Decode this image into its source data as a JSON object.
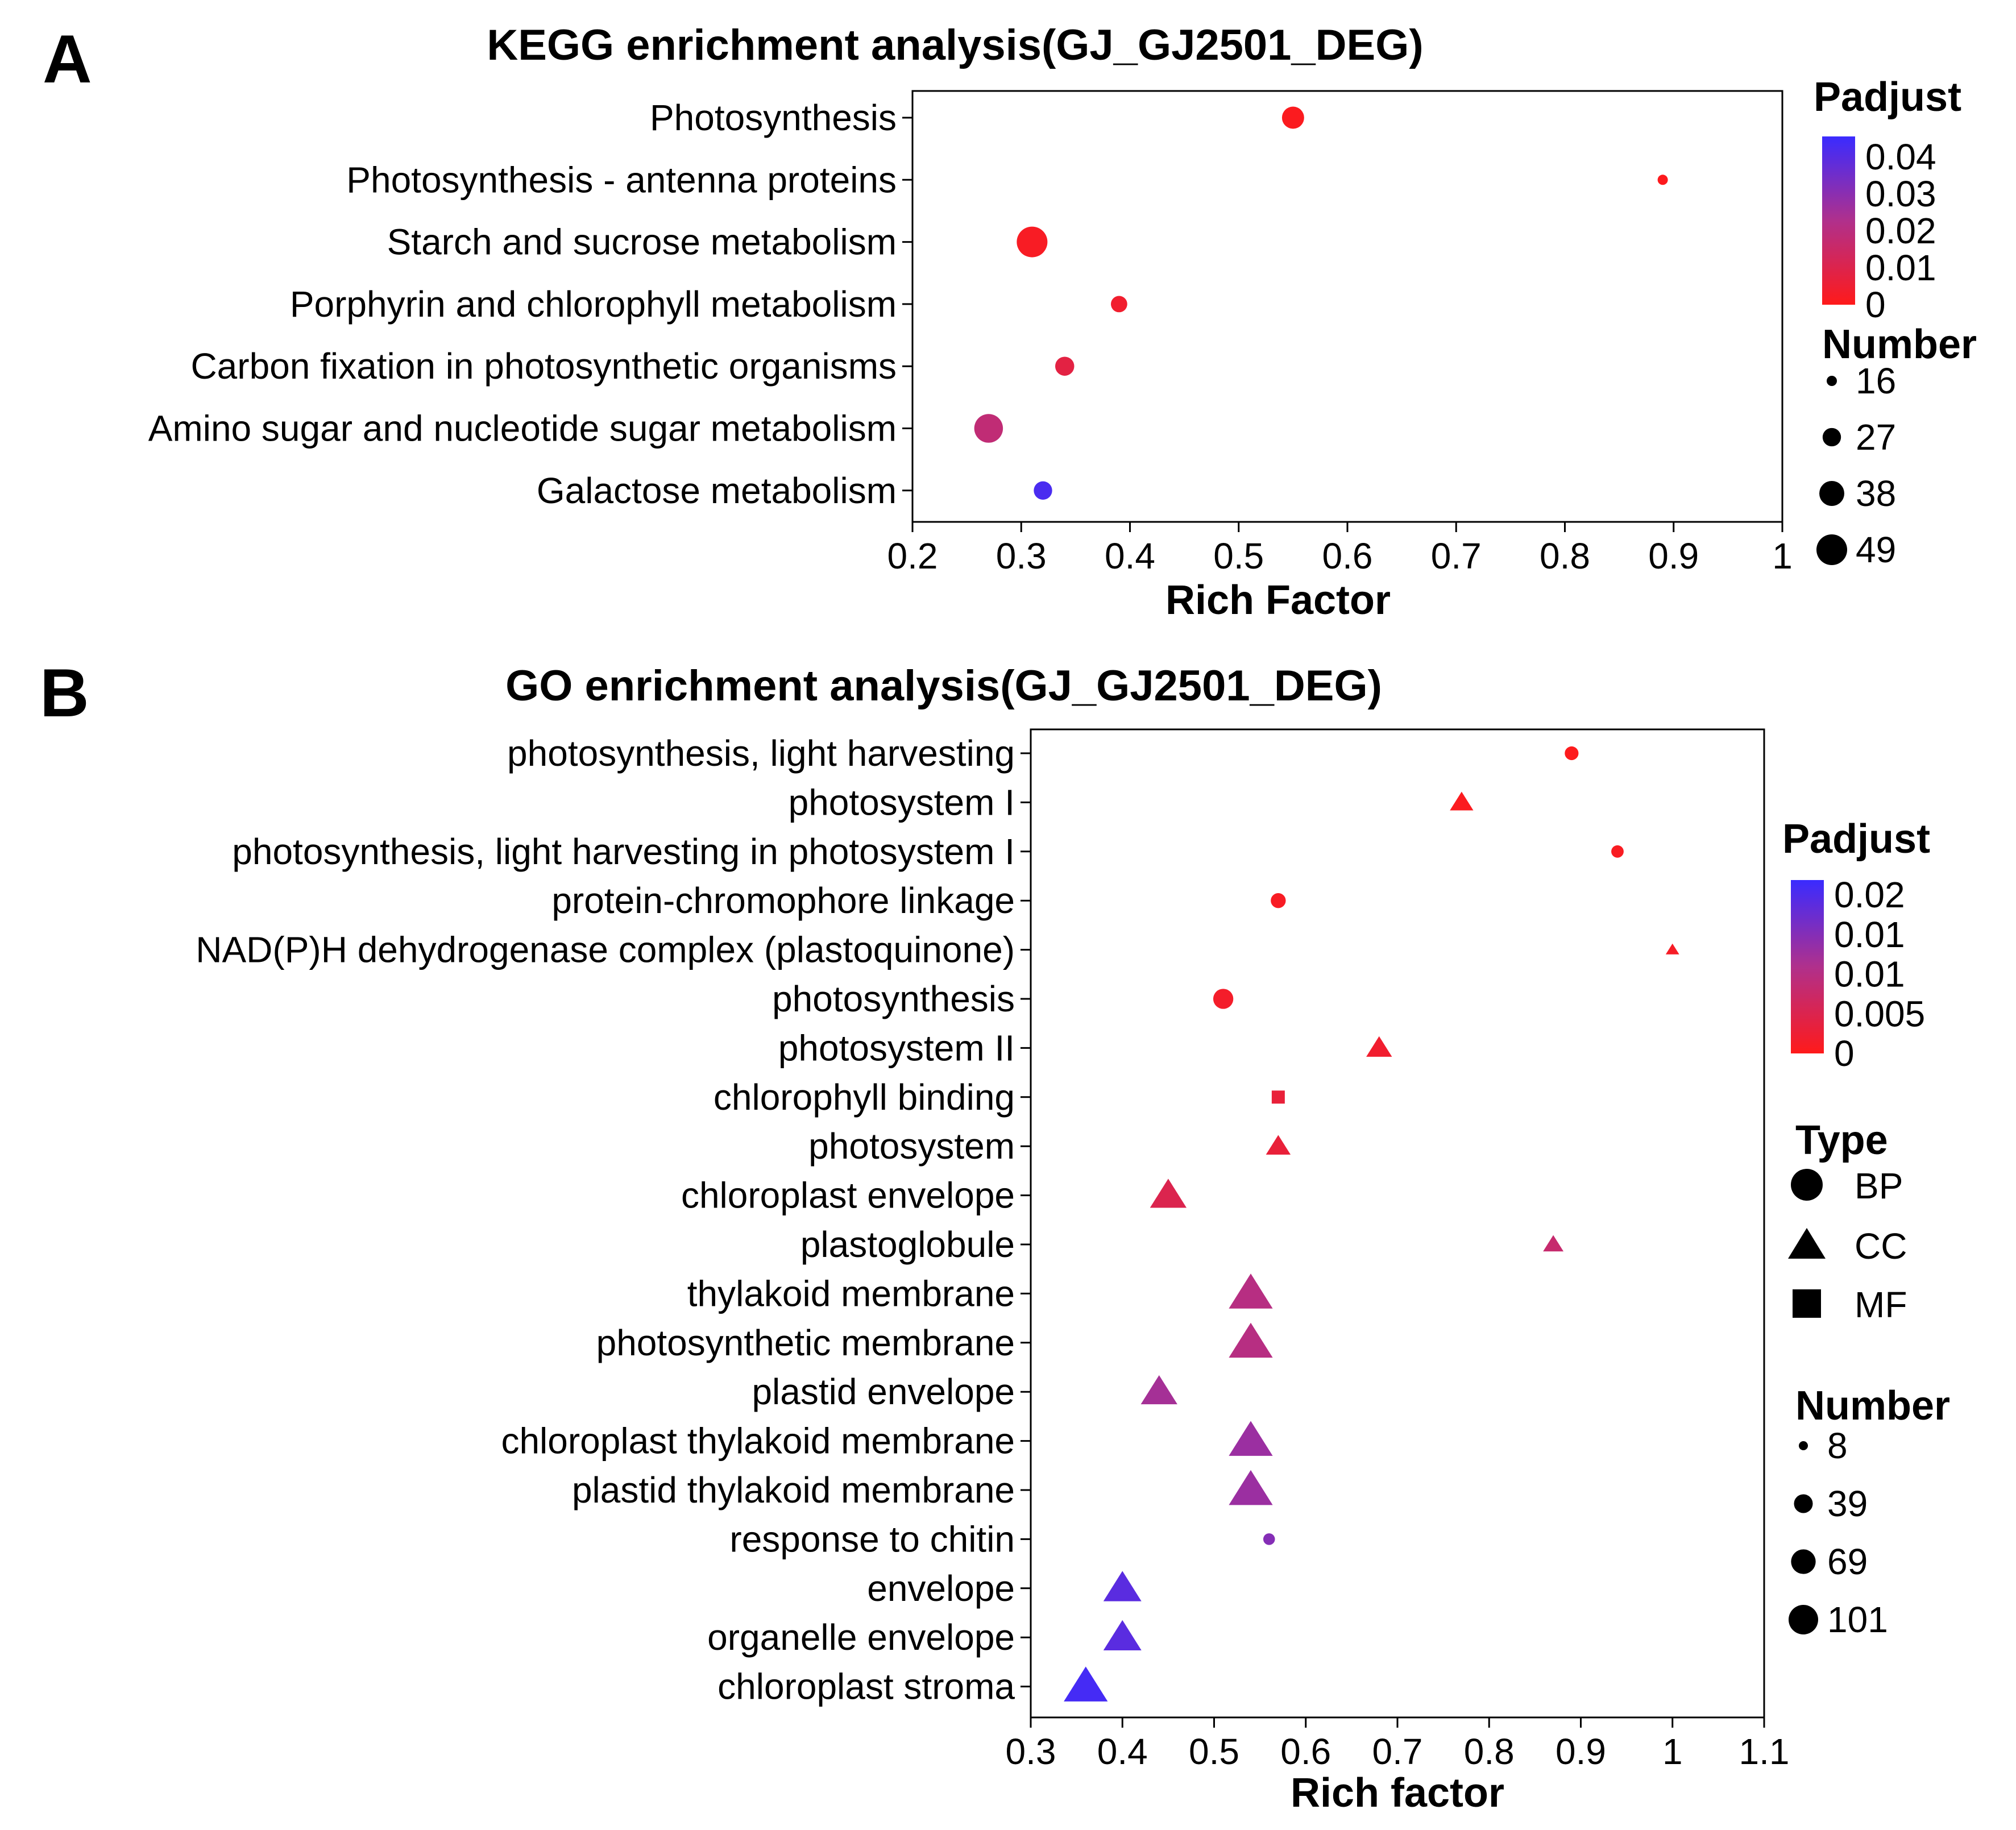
{
  "chart_data": [
    {
      "panel": "A",
      "type": "scatter",
      "title": "KEGG enrichment analysis(GJ_GJ2501_DEG)",
      "xlabel": "Rich Factor",
      "xlim": [
        0.2,
        1
      ],
      "xticks": [
        "0.2",
        "0.3",
        "0.4",
        "0.5",
        "0.6",
        "0.7",
        "0.8",
        "0.9",
        "1"
      ],
      "xtick_values": [
        0.2,
        0.3,
        0.4,
        0.5,
        0.6,
        0.7,
        0.8,
        0.9,
        1.0
      ],
      "categories": [
        "Photosynthesis",
        "Photosynthesis - antenna proteins",
        "Starch and sucrose metabolism",
        "Porphyrin and chlorophyll metabolism",
        "Carbon fixation in photosynthetic organisms",
        "Amino sugar and nucleotide sugar metabolism",
        "Galactose metabolism"
      ],
      "points": [
        {
          "category": "Photosynthesis",
          "rich_factor": 0.55,
          "number": 33,
          "padjust": 0.001
        },
        {
          "category": "Photosynthesis - antenna proteins",
          "rich_factor": 0.89,
          "number": 16,
          "padjust": 0.0005
        },
        {
          "category": "Starch and sucrose metabolism",
          "rich_factor": 0.31,
          "number": 49,
          "padjust": 0.002
        },
        {
          "category": "Porphyrin and chlorophyll metabolism",
          "rich_factor": 0.39,
          "number": 24,
          "padjust": 0.004
        },
        {
          "category": "Carbon fixation in photosynthetic organisms",
          "rich_factor": 0.34,
          "number": 28,
          "padjust": 0.008
        },
        {
          "category": "Amino sugar and nucleotide sugar metabolism",
          "rich_factor": 0.27,
          "number": 45,
          "padjust": 0.018
        },
        {
          "category": "Galactose metabolism",
          "rich_factor": 0.32,
          "number": 27,
          "padjust": 0.042
        }
      ],
      "legend_color": {
        "title": "Padjust",
        "ticks": [
          "0.04",
          "0.03",
          "0.02",
          "0.01",
          "0"
        ],
        "low_color": "#ff1a1a",
        "high_color": "#3a2bff"
      },
      "legend_size": {
        "title": "Number",
        "values": [
          "16",
          "27",
          "38",
          "49"
        ],
        "sizes": [
          16,
          27,
          38,
          49
        ]
      }
    },
    {
      "panel": "B",
      "type": "scatter",
      "title": "GO enrichment analysis(GJ_GJ2501_DEG)",
      "xlabel": "Rich factor",
      "xlim": [
        0.3,
        1.1
      ],
      "xticks": [
        "0.3",
        "0.4",
        "0.5",
        "0.6",
        "0.7",
        "0.8",
        "0.9",
        "1",
        "1.1"
      ],
      "xtick_values": [
        0.3,
        0.4,
        0.5,
        0.6,
        0.7,
        0.8,
        0.9,
        1.0,
        1.1
      ],
      "categories": [
        "photosynthesis, light harvesting",
        "photosystem I",
        "photosynthesis, light harvesting in photosystem I",
        "protein-chromophore linkage",
        "NAD(P)H dehydrogenase complex (plastoquinone)",
        "photosynthesis",
        "photosystem II",
        "chlorophyll binding",
        "photosystem",
        "chloroplast envelope",
        "plastoglobule",
        "thylakoid membrane",
        "photosynthetic membrane",
        "plastid envelope",
        "chloroplast thylakoid membrane",
        "plastid thylakoid membrane",
        "response to chitin",
        "envelope",
        "organelle envelope",
        "chloroplast stroma"
      ],
      "points": [
        {
          "category": "photosynthesis, light harvesting",
          "rich_factor": 0.89,
          "number": 20,
          "type": "BP",
          "padjust": 0.0003
        },
        {
          "category": "photosystem I",
          "rich_factor": 0.77,
          "number": 27,
          "type": "CC",
          "padjust": 0.0005
        },
        {
          "category": "photosynthesis, light harvesting in photosystem I",
          "rich_factor": 0.94,
          "number": 16,
          "type": "BP",
          "padjust": 0.0008
        },
        {
          "category": "protein-chromophore linkage",
          "rich_factor": 0.57,
          "number": 24,
          "type": "BP",
          "padjust": 0.001
        },
        {
          "category": "NAD(P)H dehydrogenase complex (plastoquinone)",
          "rich_factor": 1.0,
          "number": 8,
          "type": "CC",
          "padjust": 0.0012
        },
        {
          "category": "photosynthesis",
          "rich_factor": 0.51,
          "number": 45,
          "type": "BP",
          "padjust": 0.0015
        },
        {
          "category": "photosystem II",
          "rich_factor": 0.68,
          "number": 33,
          "type": "CC",
          "padjust": 0.002
        },
        {
          "category": "chlorophyll binding",
          "rich_factor": 0.57,
          "number": 20,
          "type": "MF",
          "padjust": 0.003
        },
        {
          "category": "photosystem",
          "rich_factor": 0.57,
          "number": 30,
          "type": "CC",
          "padjust": 0.003
        },
        {
          "category": "chloroplast envelope",
          "rich_factor": 0.45,
          "number": 69,
          "type": "CC",
          "padjust": 0.005
        },
        {
          "category": "plastoglobule",
          "rich_factor": 0.87,
          "number": 20,
          "type": "CC",
          "padjust": 0.008
        },
        {
          "category": "thylakoid membrane",
          "rich_factor": 0.54,
          "number": 101,
          "type": "CC",
          "padjust": 0.01
        },
        {
          "category": "photosynthetic membrane",
          "rich_factor": 0.54,
          "number": 101,
          "type": "CC",
          "padjust": 0.01
        },
        {
          "category": "plastid envelope",
          "rich_factor": 0.44,
          "number": 69,
          "type": "CC",
          "padjust": 0.012
        },
        {
          "category": "chloroplast thylakoid membrane",
          "rich_factor": 0.54,
          "number": 101,
          "type": "CC",
          "padjust": 0.013
        },
        {
          "category": "plastid thylakoid membrane",
          "rich_factor": 0.54,
          "number": 101,
          "type": "CC",
          "padjust": 0.013
        },
        {
          "category": "response to chitin",
          "rich_factor": 0.56,
          "number": 14,
          "type": "BP",
          "padjust": 0.015
        },
        {
          "category": "envelope",
          "rich_factor": 0.4,
          "number": 75,
          "type": "CC",
          "padjust": 0.019
        },
        {
          "category": "organelle envelope",
          "rich_factor": 0.4,
          "number": 75,
          "type": "CC",
          "padjust": 0.019
        },
        {
          "category": "chloroplast stroma",
          "rich_factor": 0.36,
          "number": 101,
          "type": "CC",
          "padjust": 0.021
        }
      ],
      "legend_color": {
        "title": "Padjust",
        "ticks": [
          "0.02",
          "0.01",
          "0.01",
          "0.005",
          "0"
        ],
        "low_color": "#ff1a1a",
        "high_color": "#3a2bff"
      },
      "legend_type": {
        "title": "Type",
        "items": [
          "BP",
          "CC",
          "MF"
        ]
      },
      "legend_size": {
        "title": "Number",
        "values": [
          "8",
          "39",
          "69",
          "101"
        ],
        "sizes": [
          8,
          39,
          69,
          101
        ]
      }
    }
  ]
}
